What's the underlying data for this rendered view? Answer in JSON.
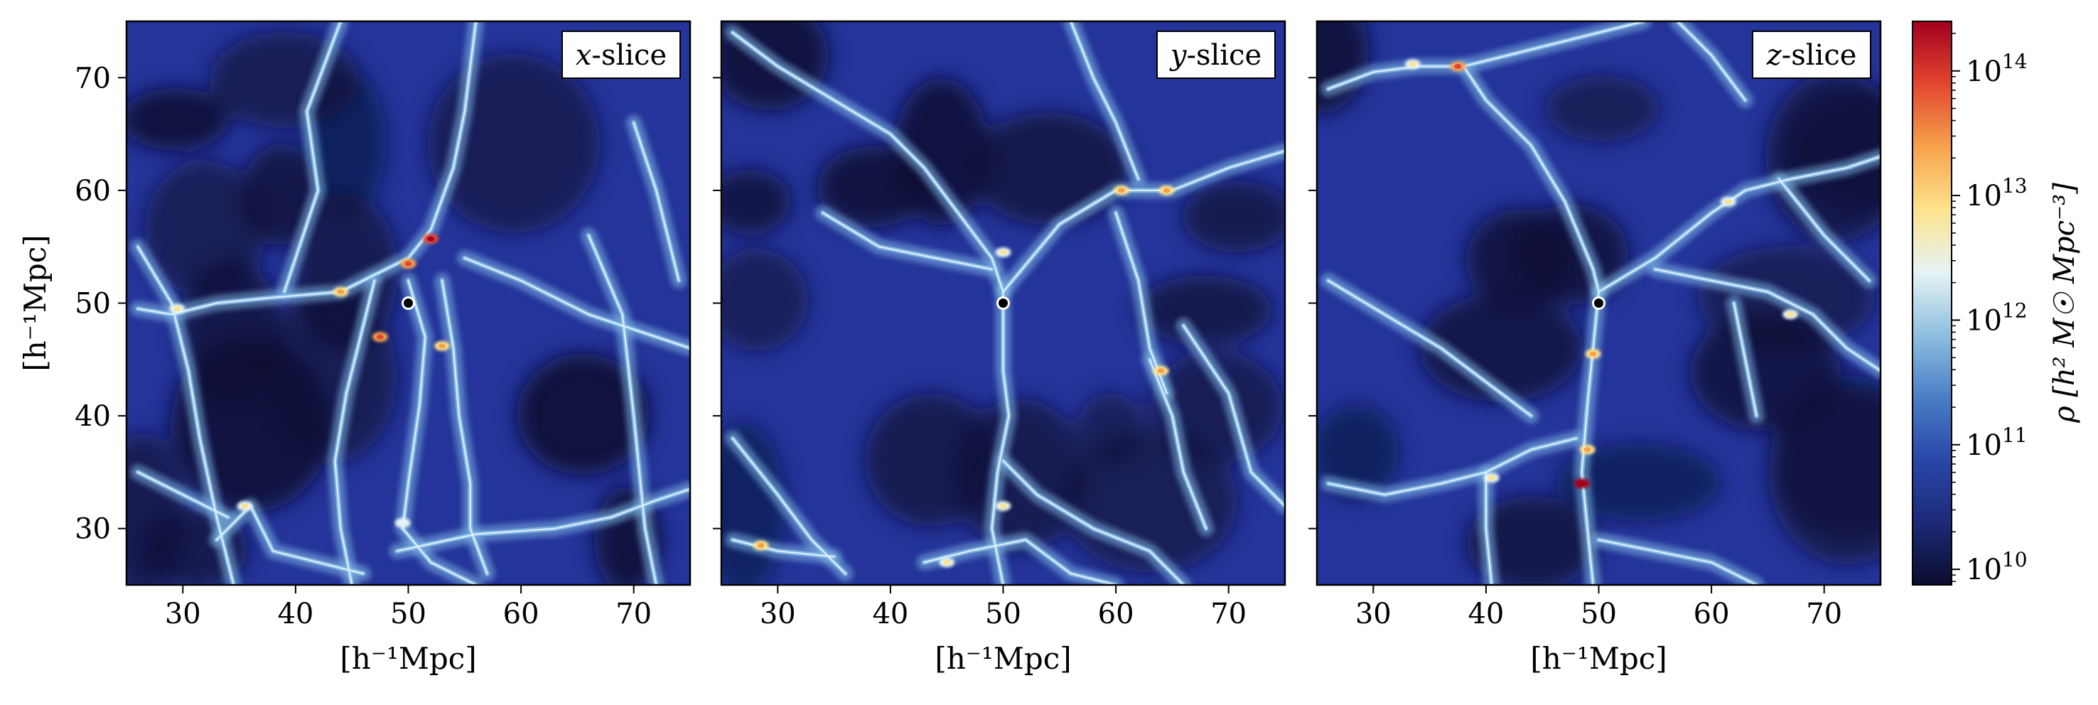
{
  "chart_data": [
    {
      "type": "heatmap",
      "panel_label_var": "x",
      "panel_label_rest": "-slice",
      "x_ticks": [
        30,
        40,
        50,
        60,
        70
      ],
      "y_ticks": [
        30,
        40,
        50,
        60,
        70
      ],
      "xlim": [
        25,
        75
      ],
      "ylim": [
        25,
        75
      ],
      "xlabel": "[h⁻¹Mpc]",
      "ylabel": "[h⁻¹Mpc]",
      "marker": {
        "x": 50,
        "y": 50
      },
      "filaments": [
        [
          [
            26,
            49.5
          ],
          [
            29,
            49
          ],
          [
            33,
            50
          ],
          [
            38,
            50.5
          ],
          [
            44,
            51
          ],
          [
            47,
            52.5
          ],
          [
            50,
            54
          ],
          [
            52,
            56.5
          ],
          [
            54,
            62
          ],
          [
            55,
            67
          ],
          [
            56,
            75
          ]
        ],
        [
          [
            26,
            55
          ],
          [
            29,
            50
          ],
          [
            30.5,
            44
          ],
          [
            31.5,
            38
          ],
          [
            33,
            31
          ],
          [
            34.5,
            25
          ]
        ],
        [
          [
            47,
            52
          ],
          [
            46,
            48
          ],
          [
            44.5,
            42
          ],
          [
            43.5,
            36
          ],
          [
            44,
            30
          ],
          [
            45,
            25
          ]
        ],
        [
          [
            50,
            52
          ],
          [
            51.5,
            47
          ],
          [
            51,
            41
          ],
          [
            50,
            34
          ],
          [
            49.5,
            30
          ],
          [
            52,
            27
          ],
          [
            56,
            25
          ]
        ],
        [
          [
            53,
            52
          ],
          [
            54,
            46
          ],
          [
            54.5,
            40
          ],
          [
            55.5,
            34
          ],
          [
            55.5,
            30
          ],
          [
            57,
            26
          ]
        ],
        [
          [
            49,
            28
          ],
          [
            56,
            29.5
          ],
          [
            63,
            30
          ],
          [
            68,
            31
          ],
          [
            72,
            32.5
          ],
          [
            75,
            33.5
          ]
        ],
        [
          [
            33,
            29
          ],
          [
            36,
            32
          ],
          [
            38,
            28
          ],
          [
            42,
            27
          ],
          [
            46,
            26
          ]
        ],
        [
          [
            39,
            51
          ],
          [
            42,
            60
          ],
          [
            41,
            67
          ],
          [
            44,
            75
          ]
        ],
        [
          [
            55,
            54
          ],
          [
            60,
            52
          ],
          [
            66,
            49
          ],
          [
            72,
            47
          ],
          [
            75,
            46
          ]
        ],
        [
          [
            66,
            56
          ],
          [
            69,
            49
          ],
          [
            70,
            40
          ],
          [
            71,
            30
          ],
          [
            72,
            25
          ]
        ],
        [
          [
            70,
            66
          ],
          [
            72,
            60
          ],
          [
            74,
            52
          ]
        ],
        [
          [
            26,
            35
          ],
          [
            30,
            33
          ],
          [
            34,
            31
          ]
        ]
      ],
      "hotspots": [
        {
          "x": 52,
          "y": 55.7,
          "level": 0.92
        },
        {
          "x": 50,
          "y": 53.5,
          "level": 0.75
        },
        {
          "x": 44,
          "y": 51,
          "level": 0.7
        },
        {
          "x": 47.5,
          "y": 47,
          "level": 0.8
        },
        {
          "x": 53,
          "y": 46.2,
          "level": 0.7
        },
        {
          "x": 29.5,
          "y": 49.5,
          "level": 0.6
        },
        {
          "x": 35.5,
          "y": 32,
          "level": 0.55
        },
        {
          "x": 49.5,
          "y": 30.5,
          "level": 0.5
        }
      ]
    },
    {
      "type": "heatmap",
      "panel_label_var": "y",
      "panel_label_rest": "-slice",
      "x_ticks": [
        30,
        40,
        50,
        60,
        70
      ],
      "y_ticks": [
        30,
        40,
        50,
        60,
        70
      ],
      "xlim": [
        25,
        75
      ],
      "ylim": [
        25,
        75
      ],
      "xlabel": "[h⁻¹Mpc]",
      "ylabel": "",
      "marker": {
        "x": 50,
        "y": 50
      },
      "filaments": [
        [
          [
            26,
            74
          ],
          [
            30,
            71
          ],
          [
            35,
            68
          ],
          [
            40,
            65
          ],
          [
            43,
            62
          ],
          [
            46,
            58
          ],
          [
            49,
            54
          ],
          [
            50,
            51
          ]
        ],
        [
          [
            50,
            51
          ],
          [
            55,
            57
          ],
          [
            60,
            60
          ],
          [
            65,
            60
          ],
          [
            70,
            62
          ],
          [
            75,
            63.5
          ]
        ],
        [
          [
            50,
            51
          ],
          [
            50,
            44
          ],
          [
            50.5,
            40
          ],
          [
            49.5,
            35
          ],
          [
            49,
            30
          ],
          [
            50,
            25
          ]
        ],
        [
          [
            26,
            38
          ],
          [
            30,
            33
          ],
          [
            33,
            29
          ],
          [
            36,
            26
          ]
        ],
        [
          [
            43,
            27
          ],
          [
            47,
            28
          ],
          [
            52,
            29
          ],
          [
            56,
            26
          ],
          [
            60,
            25
          ]
        ],
        [
          [
            50,
            36
          ],
          [
            53,
            33
          ],
          [
            58,
            30
          ],
          [
            63,
            28
          ],
          [
            66,
            25
          ]
        ],
        [
          [
            63,
            45
          ],
          [
            65,
            40
          ],
          [
            66,
            35
          ],
          [
            68,
            30
          ]
        ],
        [
          [
            66,
            48
          ],
          [
            70,
            42
          ],
          [
            72,
            35
          ],
          [
            75,
            32
          ]
        ],
        [
          [
            34,
            58
          ],
          [
            39,
            55
          ],
          [
            44,
            54
          ],
          [
            49,
            53
          ]
        ],
        [
          [
            60,
            58
          ],
          [
            62,
            52
          ],
          [
            63,
            46
          ],
          [
            64.5,
            42
          ]
        ],
        [
          [
            26,
            29
          ],
          [
            30,
            28
          ],
          [
            35,
            27.5
          ]
        ],
        [
          [
            56,
            75
          ],
          [
            58,
            70
          ],
          [
            60,
            66
          ],
          [
            62,
            61
          ]
        ]
      ],
      "hotspots": [
        {
          "x": 60.5,
          "y": 60,
          "level": 0.7
        },
        {
          "x": 64.5,
          "y": 60,
          "level": 0.7
        },
        {
          "x": 50,
          "y": 54.5,
          "level": 0.6
        },
        {
          "x": 64,
          "y": 44,
          "level": 0.72
        },
        {
          "x": 28.5,
          "y": 28.5,
          "level": 0.65
        },
        {
          "x": 45,
          "y": 27,
          "level": 0.55
        },
        {
          "x": 50,
          "y": 32,
          "level": 0.6
        }
      ]
    },
    {
      "type": "heatmap",
      "panel_label_var": "z",
      "panel_label_rest": "-slice",
      "x_ticks": [
        30,
        40,
        50,
        60,
        70
      ],
      "y_ticks": [
        30,
        40,
        50,
        60,
        70
      ],
      "xlim": [
        25,
        75
      ],
      "ylim": [
        25,
        75
      ],
      "xlabel": "[h⁻¹Mpc]",
      "ylabel": "",
      "marker": {
        "x": 50,
        "y": 50
      },
      "filaments": [
        [
          [
            26,
            69
          ],
          [
            30,
            70.5
          ],
          [
            34,
            71
          ],
          [
            38,
            71
          ],
          [
            40,
            68
          ],
          [
            44,
            64
          ],
          [
            47,
            59
          ],
          [
            49.5,
            53
          ],
          [
            50,
            51
          ]
        ],
        [
          [
            38,
            71
          ],
          [
            42,
            72
          ],
          [
            46,
            73
          ],
          [
            50,
            74
          ],
          [
            54,
            75
          ]
        ],
        [
          [
            50,
            51
          ],
          [
            49.5,
            46
          ],
          [
            49,
            41
          ],
          [
            48.5,
            35
          ],
          [
            49,
            30
          ],
          [
            49.5,
            25
          ]
        ],
        [
          [
            50,
            51
          ],
          [
            55,
            54
          ],
          [
            60,
            58
          ],
          [
            63,
            60
          ],
          [
            67,
            61
          ],
          [
            72,
            62
          ],
          [
            75,
            63
          ]
        ],
        [
          [
            26,
            34
          ],
          [
            31,
            33
          ],
          [
            36,
            34
          ],
          [
            40,
            35
          ],
          [
            44,
            37
          ],
          [
            48,
            38
          ]
        ],
        [
          [
            40,
            35
          ],
          [
            40,
            30
          ],
          [
            40.5,
            25
          ]
        ],
        [
          [
            50,
            29
          ],
          [
            55,
            28
          ],
          [
            60,
            27
          ],
          [
            64,
            25
          ]
        ],
        [
          [
            55,
            53
          ],
          [
            60,
            52
          ],
          [
            65,
            51
          ],
          [
            69,
            49
          ],
          [
            72,
            46
          ],
          [
            75,
            44
          ]
        ],
        [
          [
            62,
            50
          ],
          [
            63,
            45
          ],
          [
            64,
            40
          ]
        ],
        [
          [
            57,
            75
          ],
          [
            60,
            72
          ],
          [
            63,
            68
          ]
        ],
        [
          [
            26,
            52
          ],
          [
            31,
            49
          ],
          [
            36,
            46
          ],
          [
            40,
            43
          ],
          [
            44,
            40
          ]
        ],
        [
          [
            66,
            61
          ],
          [
            70,
            56
          ],
          [
            74,
            52
          ]
        ]
      ],
      "hotspots": [
        {
          "x": 37.5,
          "y": 71,
          "level": 0.75
        },
        {
          "x": 33.5,
          "y": 71.2,
          "level": 0.6
        },
        {
          "x": 49.5,
          "y": 45.5,
          "level": 0.72
        },
        {
          "x": 48.5,
          "y": 34,
          "level": 0.95
        },
        {
          "x": 49,
          "y": 37,
          "level": 0.7
        },
        {
          "x": 67,
          "y": 49,
          "level": 0.6
        },
        {
          "x": 40.5,
          "y": 34.5,
          "level": 0.55
        },
        {
          "x": 61.5,
          "y": 59,
          "level": 0.55
        }
      ]
    }
  ],
  "colorbar": {
    "label": "ρ  [h² M☉ Mpc⁻³]",
    "scale": "log",
    "range": [
      7500000000.0,
      250000000000000.0
    ],
    "ticks": [
      {
        "value": 10000000000.0,
        "base": "10",
        "exp": "10"
      },
      {
        "value": 100000000000.0,
        "base": "10",
        "exp": "11"
      },
      {
        "value": 1000000000000.0,
        "base": "10",
        "exp": "12"
      },
      {
        "value": 10000000000000.0,
        "base": "10",
        "exp": "13"
      },
      {
        "value": 100000000000000.0,
        "base": "10",
        "exp": "14"
      }
    ],
    "colormap": [
      "#0a0c2c",
      "#1c2a78",
      "#2a47a8",
      "#4a7fc6",
      "#8fbfe0",
      "#e6f4f4",
      "#fde38c",
      "#f7a24b",
      "#e2462f",
      "#a3001f"
    ]
  },
  "colors": {
    "background_low": "#0b0d33",
    "background_mid": "#24349a",
    "filament": "#7fb8e6",
    "filament_core": "#e4f2fa",
    "marker_fill": "#000000",
    "marker_edge": "#ffffff"
  }
}
